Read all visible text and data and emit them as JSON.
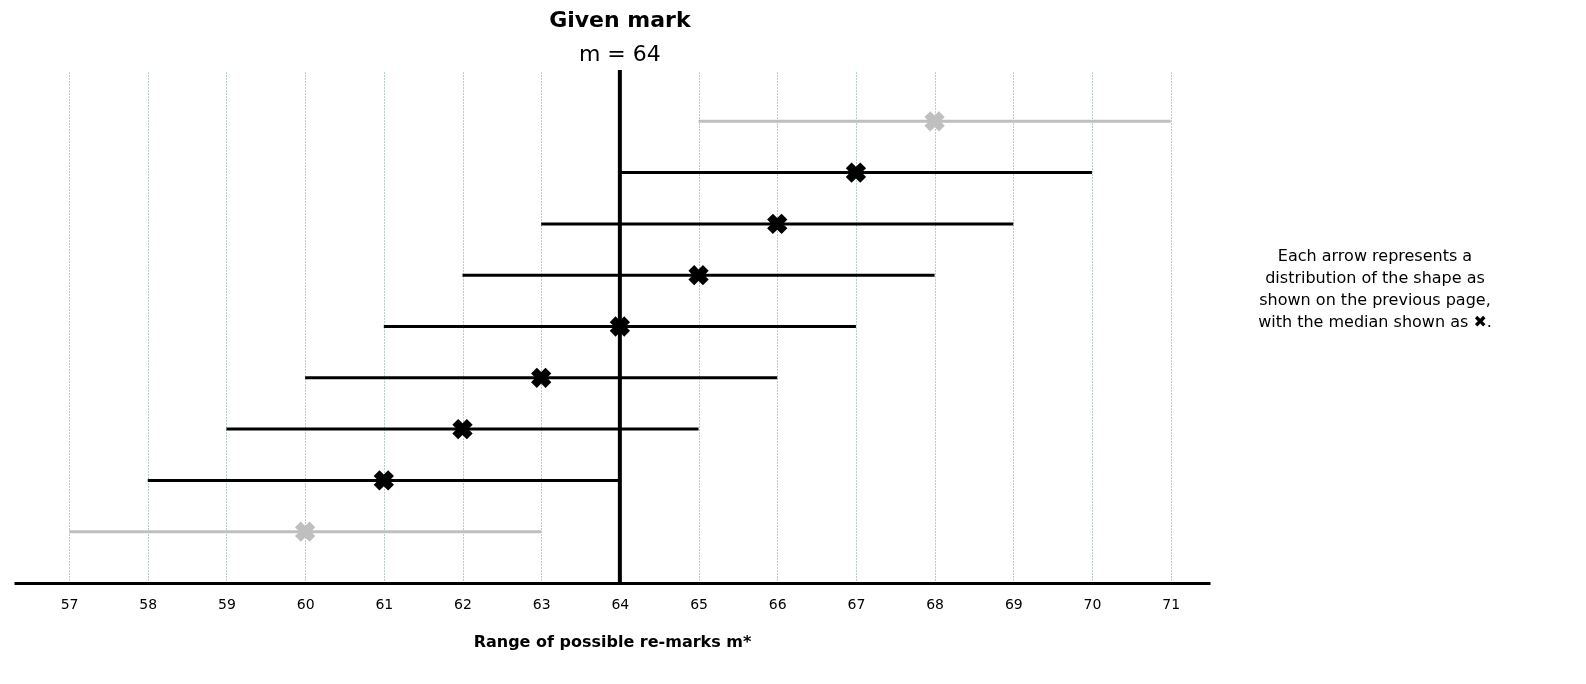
{
  "chart_data": {
    "type": "scatter",
    "orientation": "horizontal",
    "title": "Given mark",
    "xlabel": "Range of possible re-marks m*",
    "categories": [
      null,
      null,
      null,
      null,
      null,
      null,
      null,
      null,
      null
    ],
    "values": [
      68,
      67,
      66,
      65,
      64,
      63,
      62,
      61,
      60
    ],
    "errors": [
      3,
      3,
      3,
      3,
      3,
      3,
      3,
      3,
      3
    ],
    "colors": [
      "#bfbfbf",
      "#000000",
      "#000000",
      "#000000",
      "#000000",
      "#000000",
      "#000000",
      "#000000",
      "#bfbfbf"
    ],
    "xlim": [
      56.3,
      71.5
    ],
    "xticks": [
      57,
      58,
      59,
      60,
      61,
      62,
      63,
      64,
      65,
      66,
      67,
      68,
      69,
      70,
      71
    ],
    "ref_lines": [
      {
        "axis": "x",
        "value": 64,
        "label": "m = 64",
        "color": "#000000"
      }
    ],
    "annotations": [
      "Each arrow represents a distribution of the shape as shown on the previous page, with the median shown as ✖."
    ],
    "grid": "x",
    "marker": "cross"
  }
}
